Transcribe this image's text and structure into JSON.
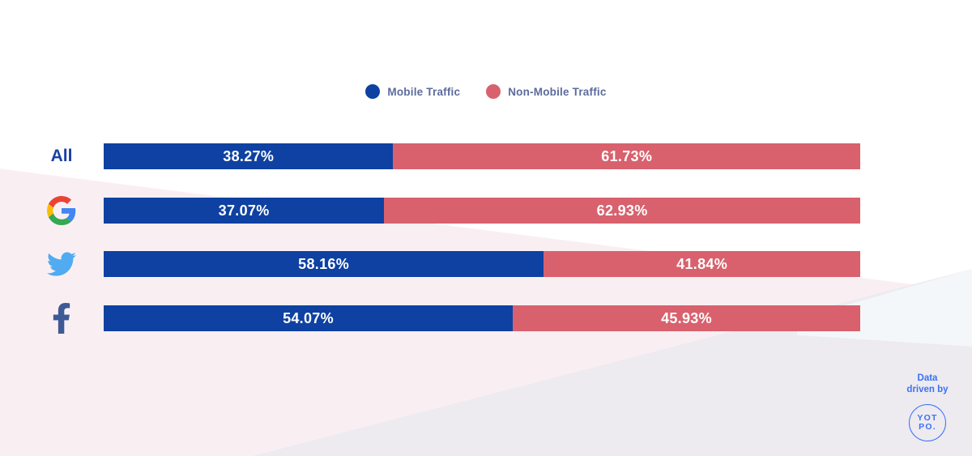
{
  "legend": {
    "items": [
      {
        "label": "Mobile Traffic",
        "color": "#0E41A1"
      },
      {
        "label": "Non-Mobile Traffic",
        "color": "#D8616D"
      }
    ]
  },
  "chart_data": {
    "type": "bar",
    "variant": "horizontal-stacked",
    "units": "percent",
    "categories": [
      "All",
      "Google",
      "Twitter",
      "Facebook"
    ],
    "category_display": [
      {
        "kind": "text",
        "text": "All"
      },
      {
        "kind": "icon",
        "icon": "google"
      },
      {
        "kind": "icon",
        "icon": "twitter"
      },
      {
        "kind": "icon",
        "icon": "facebook"
      }
    ],
    "series": [
      {
        "name": "Mobile Traffic",
        "color": "#0E41A1",
        "values": [
          38.27,
          37.07,
          58.16,
          54.07
        ]
      },
      {
        "name": "Non-Mobile Traffic",
        "color": "#D8616D",
        "values": [
          61.73,
          62.93,
          41.84,
          45.93
        ]
      }
    ],
    "xlim": [
      0,
      100
    ],
    "value_labels": "inside, white bold, formatted as NN.NN%",
    "legend_position": "top-center",
    "axes_visible": false,
    "grid": false
  },
  "footer": {
    "credit": {
      "line1": "Data",
      "line2": "driven by"
    },
    "logo": {
      "line1": "YOT",
      "line2": "PO.",
      "color": "#3A72F2"
    }
  },
  "palette": {
    "row_label_text": "#1840A4",
    "legend_text": "#5C6B9C",
    "background": "#FFFFFF",
    "bg_pink": "#F9EFF3",
    "bg_lavender": "#EDEAF0",
    "bg_lightblue": "#F3F7FA",
    "twitter_blue": "#50ABF1",
    "facebook_blue": "#3D5A96",
    "google_red": "#EA4335",
    "google_blue": "#4285F4",
    "google_yellow": "#FBBC05",
    "google_green": "#34A853"
  }
}
